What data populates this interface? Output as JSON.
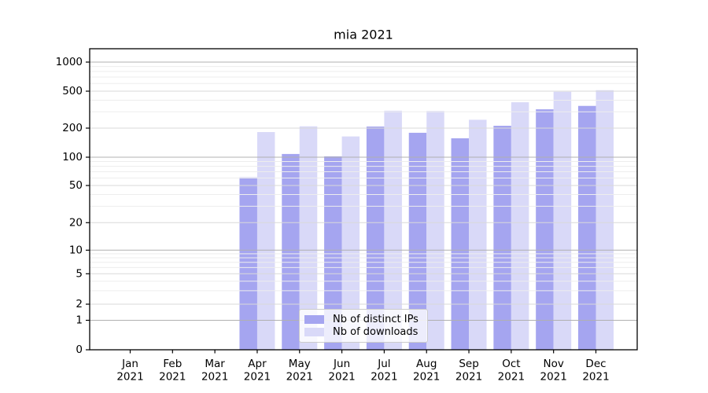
{
  "chart_data": {
    "type": "bar",
    "title": "mia 2021",
    "x_categories": [
      "Jan 2021",
      "Feb 2021",
      "Mar 2021",
      "Apr 2021",
      "May 2021",
      "Jun 2021",
      "Jul 2021",
      "Aug 2021",
      "Sep 2021",
      "Oct 2021",
      "Nov 2021",
      "Dec 2021"
    ],
    "series": [
      {
        "name": "Nb of distinct IPs",
        "color": "#a5a5f0",
        "values": [
          0,
          0,
          0,
          61,
          108,
          102,
          208,
          179,
          157,
          212,
          319,
          347
        ]
      },
      {
        "name": "Nb of downloads",
        "color": "#d9d9f8",
        "values": [
          0,
          0,
          0,
          182,
          209,
          164,
          308,
          306,
          246,
          380,
          493,
          512
        ]
      }
    ],
    "yscale": "symlog",
    "yticks": [
      0,
      1,
      2,
      5,
      10,
      20,
      50,
      100,
      200,
      500,
      1000
    ],
    "ylim": [
      0,
      1380
    ],
    "xlabel": "",
    "ylabel": "",
    "grid": true,
    "legend_position": "lower center"
  }
}
